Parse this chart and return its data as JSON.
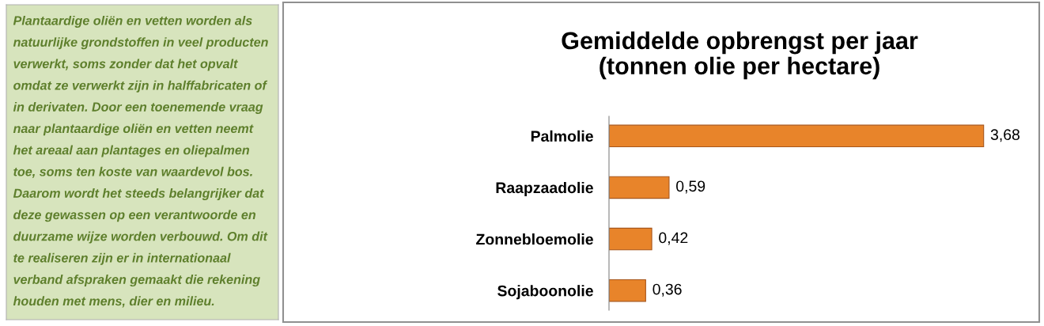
{
  "chart_data": [
    {
      "type": "other",
      "annotations": [
        "Plantaardige oliën en vetten worden als",
        "natuurlijke grondstoffen in veel producten",
        "verwerkt, soms zonder dat het opvalt",
        "omdat ze verwerkt zijn in halffabricaten of",
        "in derivaten. Door een toenemende vraag",
        "naar plantaardige oliën en vetten neemt",
        "het areaal aan plantages en oliepalmen",
        "toe, soms ten koste van waardevol bos.",
        "Daarom wordt het steeds belangrijker dat",
        "deze gewassen op een verantwoorde en",
        "duurzame wijze worden verbouwd. Om dit",
        "te realiseren zijn er in internationaal",
        "verband afspraken gemaakt die rekening",
        "houden met mens, dier en milieu."
      ]
    },
    {
      "type": "bar",
      "orientation": "horizontal",
      "title": "Gemiddelde opbrengst per jaar\n(tonnen olie per hectare)",
      "categories": [
        "Palmolie",
        "Raapzaadolie",
        "Zonnebloemolie",
        "Sojaboonolie"
      ],
      "values": [
        3.68,
        0.59,
        0.42,
        0.36
      ],
      "value_labels": [
        "3,68",
        "0,59",
        "0,42",
        "0,36"
      ],
      "color": "#e8842a",
      "grid": false,
      "legend": false
    }
  ]
}
